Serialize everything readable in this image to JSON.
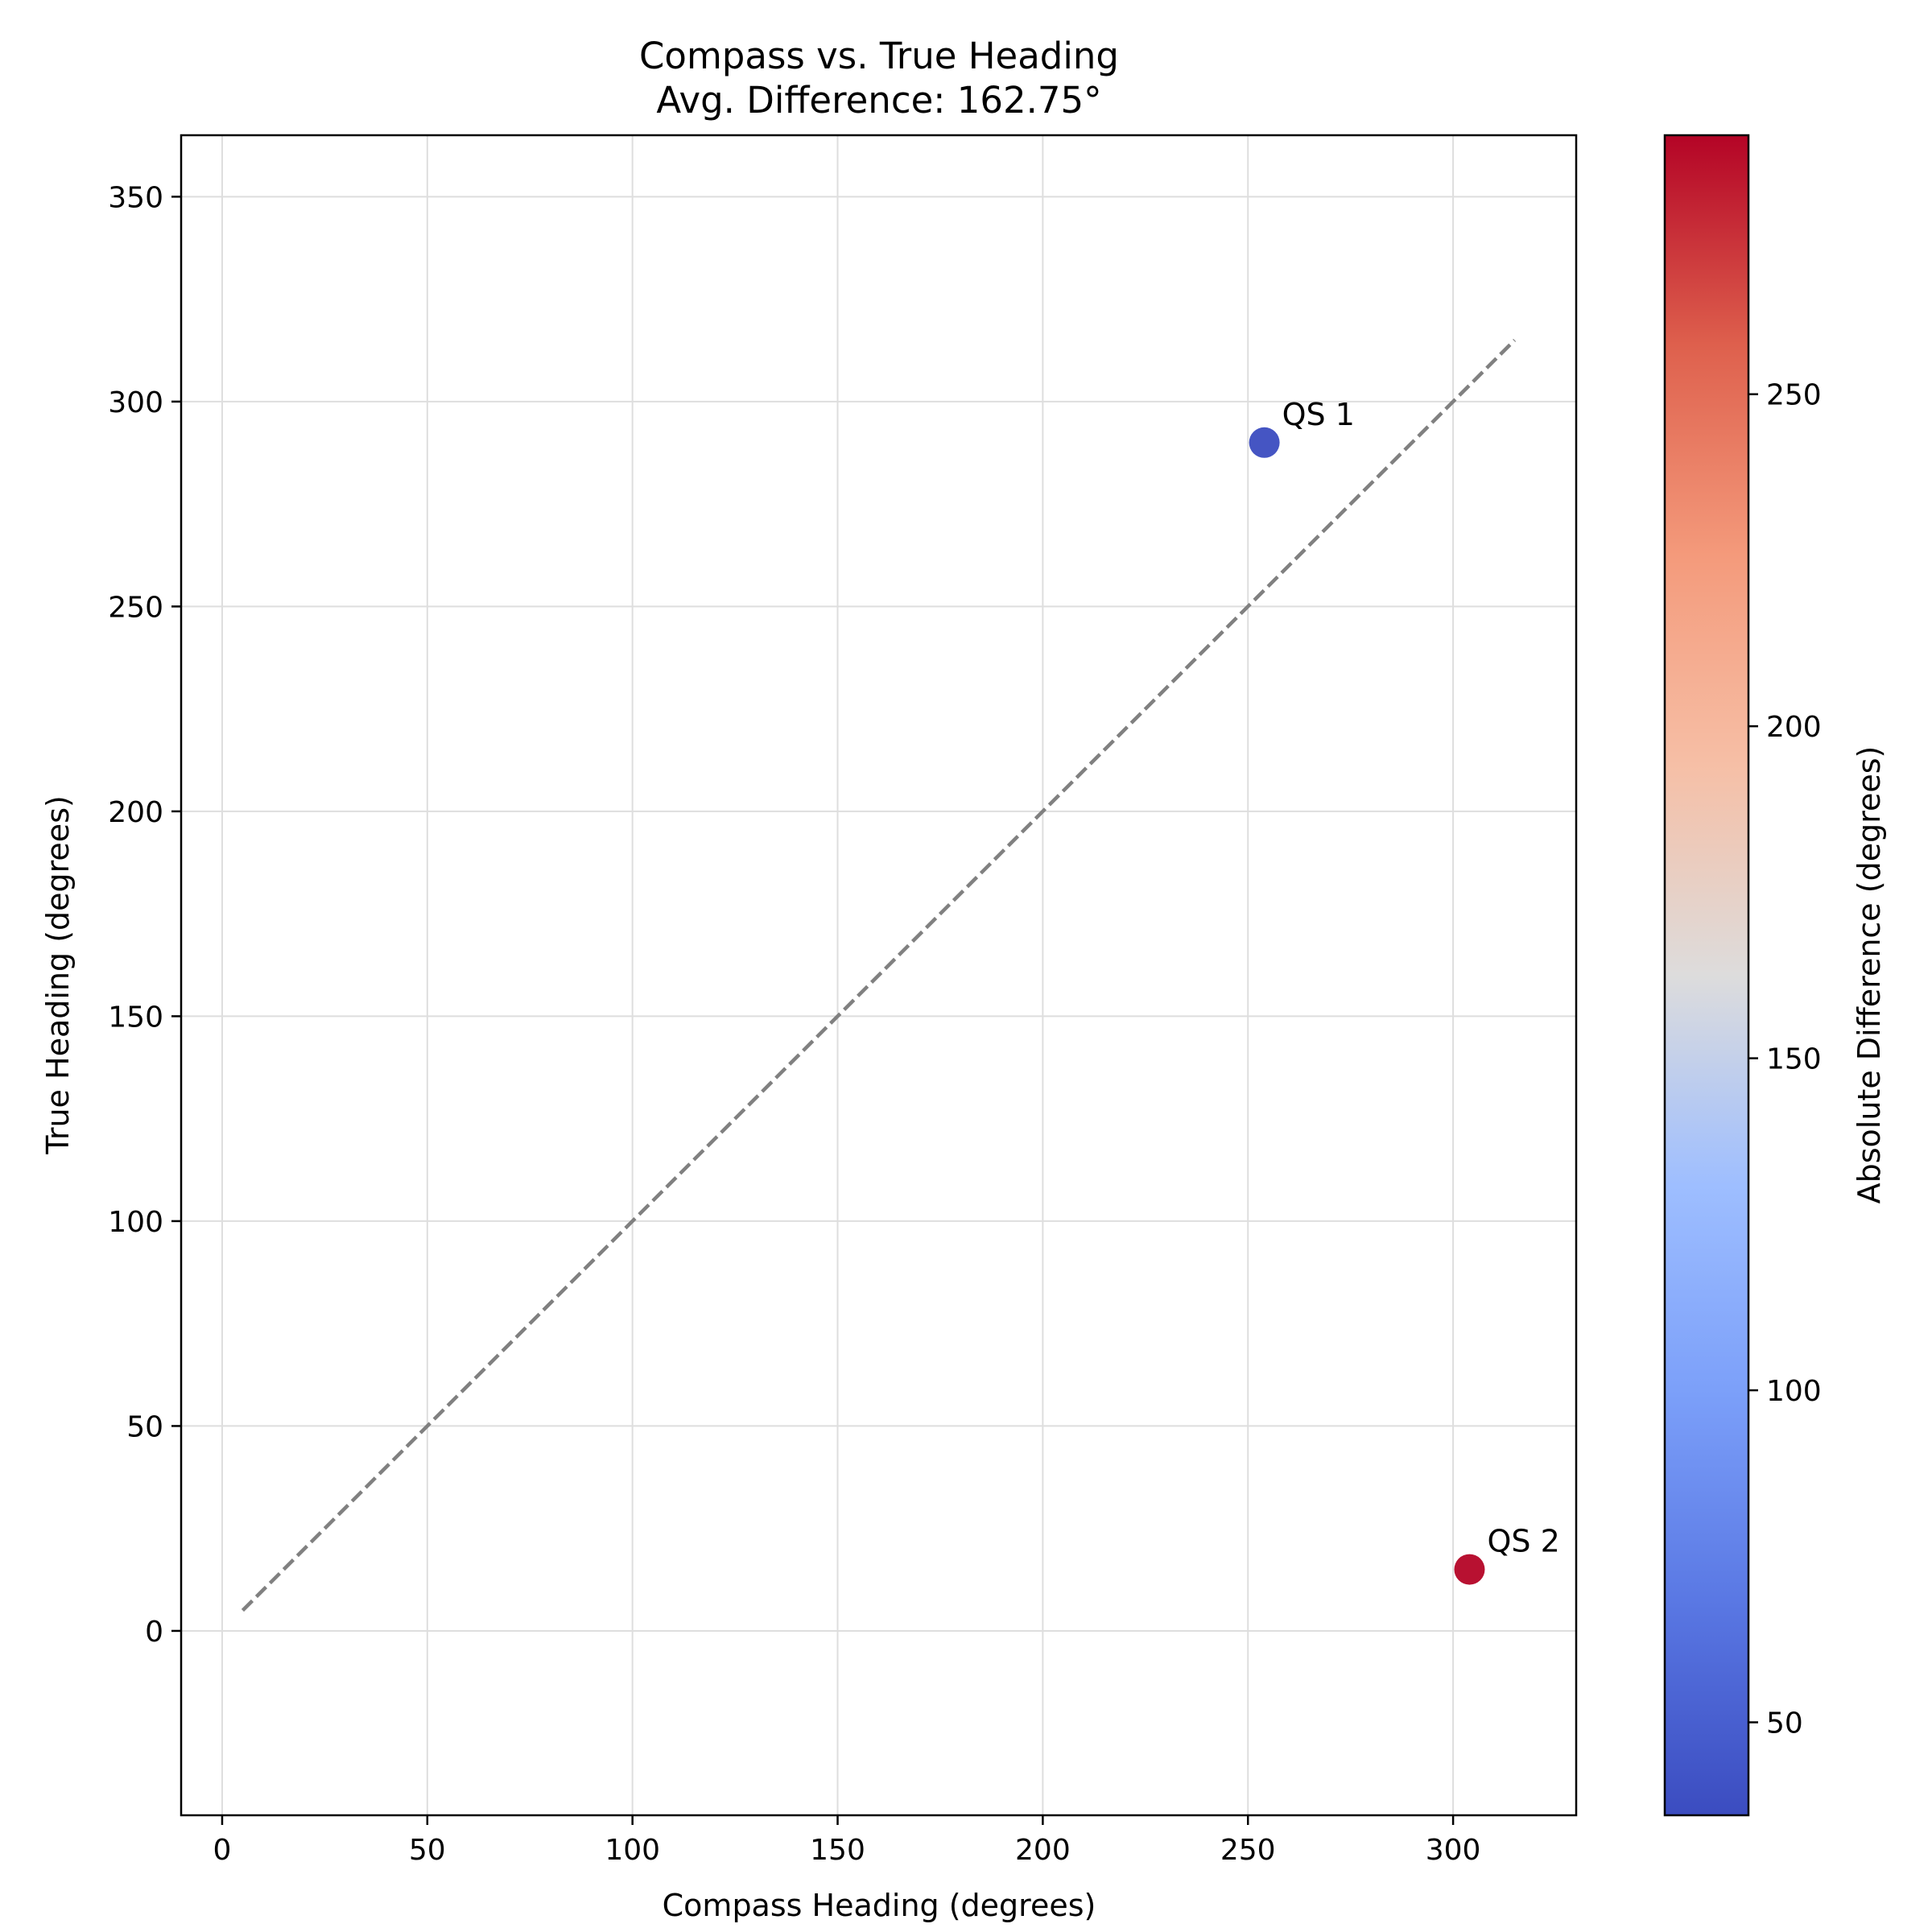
{
  "chart_data": {
    "type": "scatter",
    "title": "Compass vs. True Heading",
    "subtitle": "Avg. Difference: 162.75°",
    "xlabel": "Compass Heading (degrees)",
    "ylabel": "True Heading (degrees)",
    "xlim": [
      -10,
      330
    ],
    "ylim": [
      -45,
      365
    ],
    "xticks": [
      0,
      50,
      100,
      150,
      200,
      250,
      300
    ],
    "yticks": [
      0,
      50,
      100,
      150,
      200,
      250,
      300,
      350
    ],
    "grid": true,
    "reference_line": {
      "style": "dashed",
      "color": "#808080",
      "x": [
        5,
        315
      ],
      "y": [
        5,
        315
      ]
    },
    "points": [
      {
        "label": "QS 1",
        "x": 254,
        "y": 290,
        "abs_diff": 36,
        "color": "#3b4cc0"
      },
      {
        "label": "QS 2",
        "x": 304,
        "y": 15,
        "abs_diff": 289,
        "color": "#b40426"
      }
    ],
    "colorbar": {
      "label": "Absolute Difference (degrees)",
      "range": [
        36,
        289
      ],
      "ticks": [
        50,
        100,
        150,
        200,
        250
      ],
      "colormap": "coolwarm"
    }
  }
}
